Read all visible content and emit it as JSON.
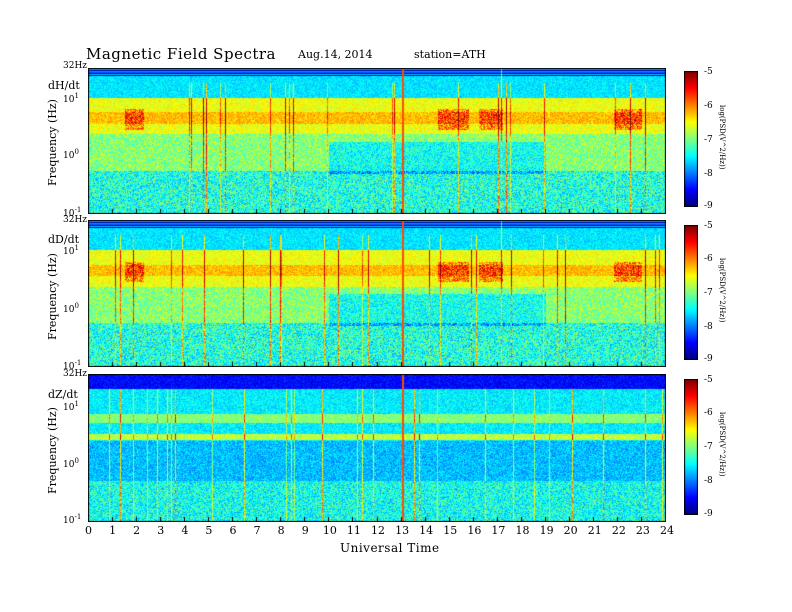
{
  "header": {
    "title": "Magnetic  Field  Spectra",
    "date": "Aug.14, 2014",
    "station": "station=ATH"
  },
  "chart_data": {
    "type": "heatmap",
    "xlabel": "Universal Time",
    "ylabel": "Frequency (Hz)",
    "x_ticks": [
      "0",
      "1",
      "2",
      "3",
      "4",
      "5",
      "6",
      "7",
      "8",
      "9",
      "10",
      "11",
      "12",
      "13",
      "14",
      "15",
      "16",
      "17",
      "18",
      "19",
      "20",
      "21",
      "22",
      "23",
      "24"
    ],
    "xlim": [
      0,
      24
    ],
    "ylim_hz": [
      0.1,
      32
    ],
    "y_scale": "log",
    "top_freq_label": "32Hz",
    "colorbar": {
      "label": "log(PSD(V^2/Hz))",
      "ticks": [
        "-5",
        "-6",
        "-7",
        "-8",
        "-9"
      ],
      "range": [
        -9,
        -5
      ],
      "colormap": "jet"
    },
    "panels": [
      {
        "name": "dH/dt",
        "y_ticks": [
          {
            "base": "10",
            "exp": "1"
          },
          {
            "base": "10",
            "exp": "0"
          },
          {
            "base": "10",
            "exp": "-1"
          }
        ]
      },
      {
        "name": "dD/dt",
        "y_ticks": [
          {
            "base": "10",
            "exp": "1"
          },
          {
            "base": "10",
            "exp": "0"
          },
          {
            "base": "10",
            "exp": "-1"
          }
        ]
      },
      {
        "name": "dZ/dt",
        "y_ticks": [
          {
            "base": "10",
            "exp": "1"
          },
          {
            "base": "10",
            "exp": "0"
          },
          {
            "base": "10",
            "exp": "-1"
          }
        ]
      }
    ]
  }
}
